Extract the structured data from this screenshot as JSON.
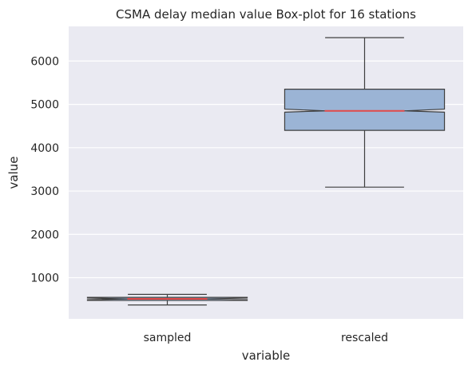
{
  "chart_data": {
    "type": "box",
    "title": "CSMA delay median value Box-plot for 16 stations",
    "xlabel": "variable",
    "ylabel": "value",
    "categories": [
      "sampled",
      "rescaled"
    ],
    "ylim": [
      50,
      6800
    ],
    "yticks": [
      1000,
      2000,
      3000,
      4000,
      5000,
      6000
    ],
    "grid": true,
    "notched": true,
    "boxes": [
      {
        "category": "sampled",
        "whisker_low": 370,
        "q1": 475,
        "median": 510,
        "q3": 545,
        "whisker_high": 615,
        "notch_low": 490,
        "notch_high": 530
      },
      {
        "category": "rescaled",
        "whisker_low": 3090,
        "q1": 4400,
        "median": 4850,
        "q3": 5350,
        "whisker_high": 6540,
        "notch_low": 4820,
        "notch_high": 4890
      }
    ],
    "colors": {
      "background": "#eaeaf2",
      "grid": "#ffffff",
      "box_fill": "#9bb4d5",
      "box_edge": "#3f3f3f",
      "median": "#e24a4a"
    }
  }
}
